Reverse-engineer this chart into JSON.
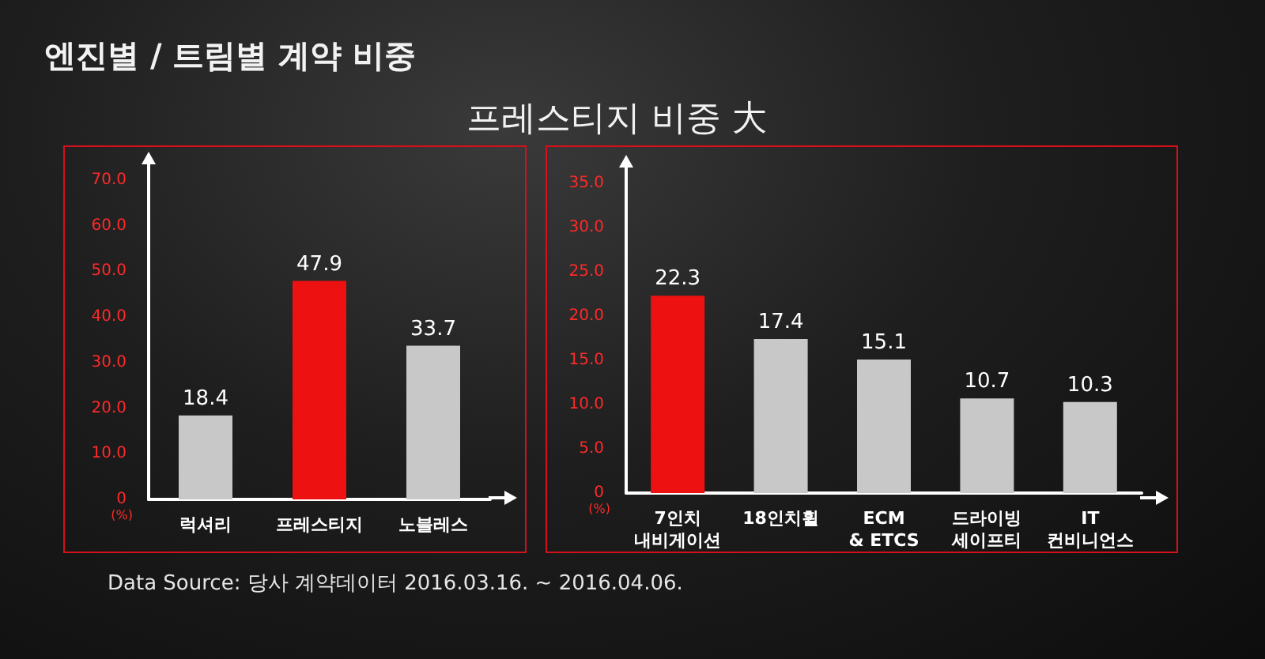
{
  "chart_data": [
    {
      "type": "bar",
      "title": "엔진별 / 트림별 계약 비중",
      "subtitle": "프레스티지 비중 大",
      "ylabel": "(%)",
      "annotations": [
        "Data Source: 당사 계약데이터 2016.03.16. ~ 2016.04.06."
      ],
      "categories": [
        "럭셔리",
        "프레스티지",
        "노블레스"
      ],
      "values": [
        18.4,
        47.9,
        33.7
      ],
      "colors": [
        "#c8c8c8",
        "#ee1111",
        "#c8c8c8"
      ],
      "ylim": [
        0,
        70
      ],
      "yticks": [
        0,
        {
          "value": 10,
          "label": "10.0"
        },
        {
          "value": 20,
          "label": "20.0"
        },
        {
          "value": 30,
          "label": "30.0"
        },
        {
          "value": 40,
          "label": "40.0"
        },
        {
          "value": 50,
          "label": "50.0"
        },
        {
          "value": 60,
          "label": "60.0"
        },
        {
          "value": 70,
          "label": "70.0"
        }
      ],
      "data_labels": true
    },
    {
      "type": "bar",
      "ylabel": "(%)",
      "categories": [
        "7인치 내비게이션",
        "18인치휠",
        "ECM & ETCS",
        "드라이빙 세이프티",
        "IT 컨비니언스"
      ],
      "values": [
        22.3,
        17.4,
        15.1,
        10.7,
        10.3
      ],
      "colors": [
        "#ee1111",
        "#c8c8c8",
        "#c8c8c8",
        "#c8c8c8",
        "#c8c8c8"
      ],
      "ylim": [
        0,
        35
      ],
      "yticks": [
        0,
        {
          "value": 5,
          "label": "5.0"
        },
        {
          "value": 10,
          "label": "10.0"
        },
        {
          "value": 15,
          "label": "15.0"
        },
        {
          "value": 20,
          "label": "20.0"
        },
        {
          "value": 25,
          "label": "25.0"
        },
        {
          "value": 30,
          "label": "30.0"
        },
        {
          "value": 35,
          "label": "35.0"
        }
      ],
      "data_labels": true
    }
  ]
}
